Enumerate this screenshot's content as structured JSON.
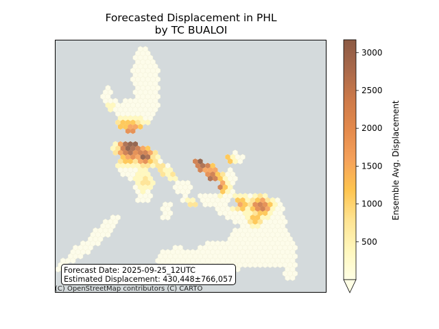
{
  "title_line1": "Forecasted Displacement in PHL",
  "title_line2": "by TC BUALOI",
  "info": {
    "forecast_date": "Forecast Date: 2025-09-25_12UTC",
    "estimated_displacement": "Estimated Displacement: 430,448±766,057"
  },
  "attribution": "(C) OpenStreetMap contributors (C) CARTO",
  "colorbar": {
    "label": "Ensemble Avg. Displacement",
    "min": 0,
    "max": 3170,
    "ticks": [
      500,
      1000,
      1500,
      2000,
      2500,
      3000
    ],
    "tick_labels": [
      "500",
      "1000",
      "1500",
      "2000",
      "2500",
      "3000"
    ],
    "extend": "min",
    "colormap": [
      "#ffffe5",
      "#fff7bc",
      "#fee391",
      "#fec44f",
      "#f5a15a",
      "#e48a4c",
      "#cd7a4a",
      "#a9694b",
      "#8c5a44"
    ]
  },
  "colors": {
    "water": "#d4dadc",
    "land": "#fdfcea",
    "land_edge": "#f1efd6"
  }
}
